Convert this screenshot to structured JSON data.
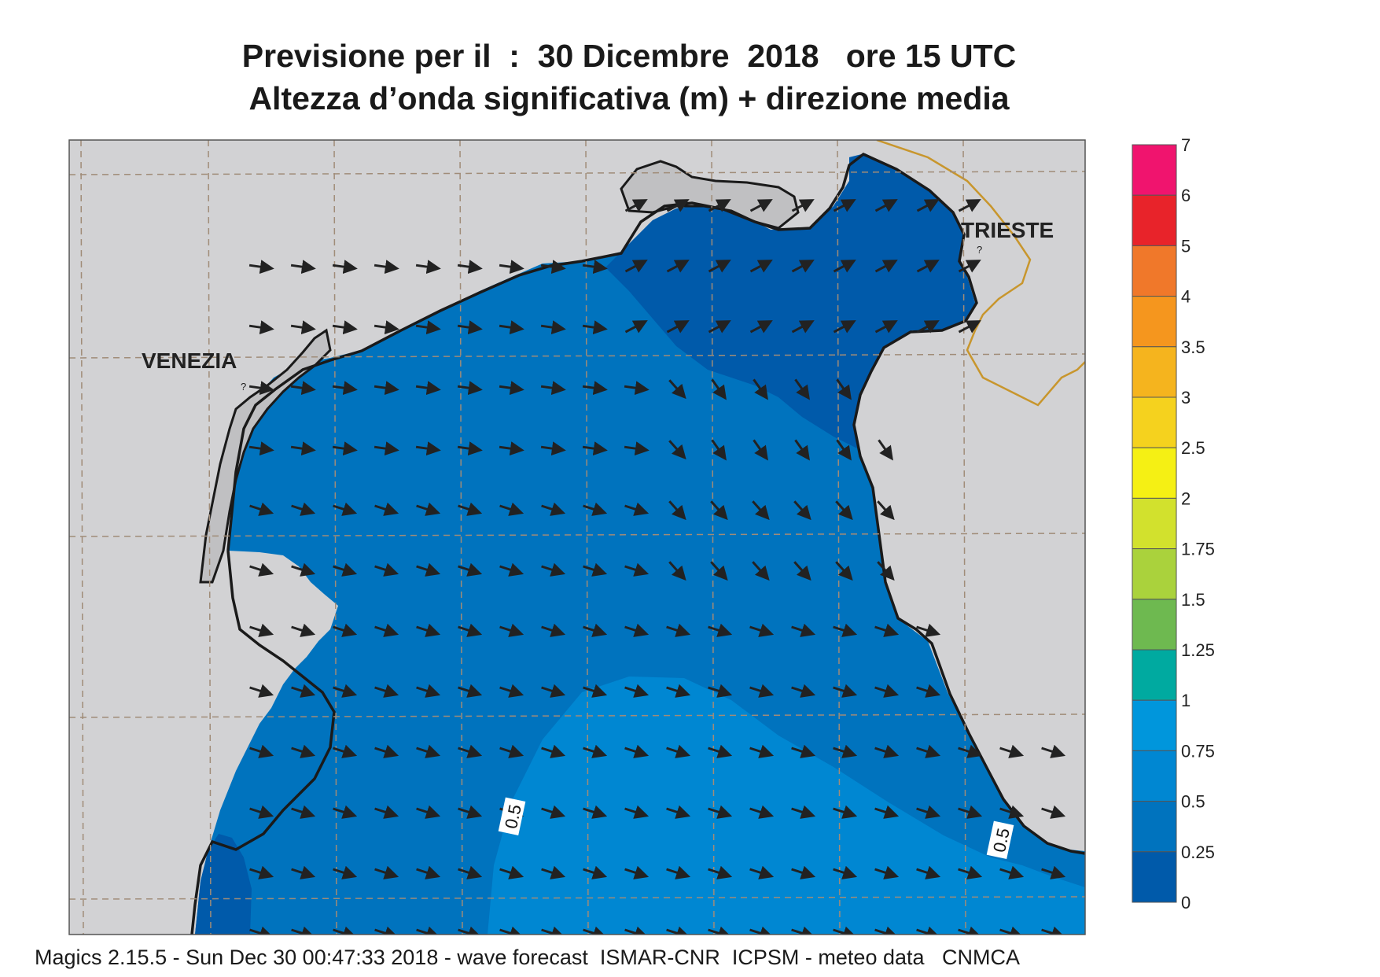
{
  "title": {
    "line1": "Previsione per il  :  30 Dicembre  2018   ore 15 UTC",
    "line2": "Altezza d’onda significativa (m) + direzione media"
  },
  "places": {
    "venezia": "VENEZIA",
    "trieste": "TRIESTE",
    "marker": "?"
  },
  "contour_labels": [
    "0.5",
    "0.5"
  ],
  "legend": {
    "levels": [
      "7",
      "6",
      "5",
      "4",
      "3.5",
      "3",
      "2.5",
      "2",
      "1.75",
      "1.5",
      "1.25",
      "1",
      "0.75",
      "0.5",
      "0.25",
      "0"
    ],
    "colors": [
      "#f0146e",
      "#e8232a",
      "#f0782a",
      "#f5961e",
      "#f5b41e",
      "#f5d21e",
      "#f5f014",
      "#d2e12d",
      "#aad23c",
      "#6eb950",
      "#00aaa0",
      "#0096dc",
      "#0087d2",
      "#0073be",
      "#005aaa"
    ]
  },
  "colors": {
    "land": "#d2d2d4",
    "lagoon": "#c0c0c2",
    "band_0_025": "#005aaa",
    "band_025_05": "#0073be",
    "band_05_075": "#0087d2",
    "border": "#c8962d",
    "graticule": "#a08c78"
  },
  "footer": "Magics 2.15.5 - Sun Dec 30 00:47:33 2018 - wave forecast  ISMAR-CNR  ICPSM - meteo data   CNMCA"
}
